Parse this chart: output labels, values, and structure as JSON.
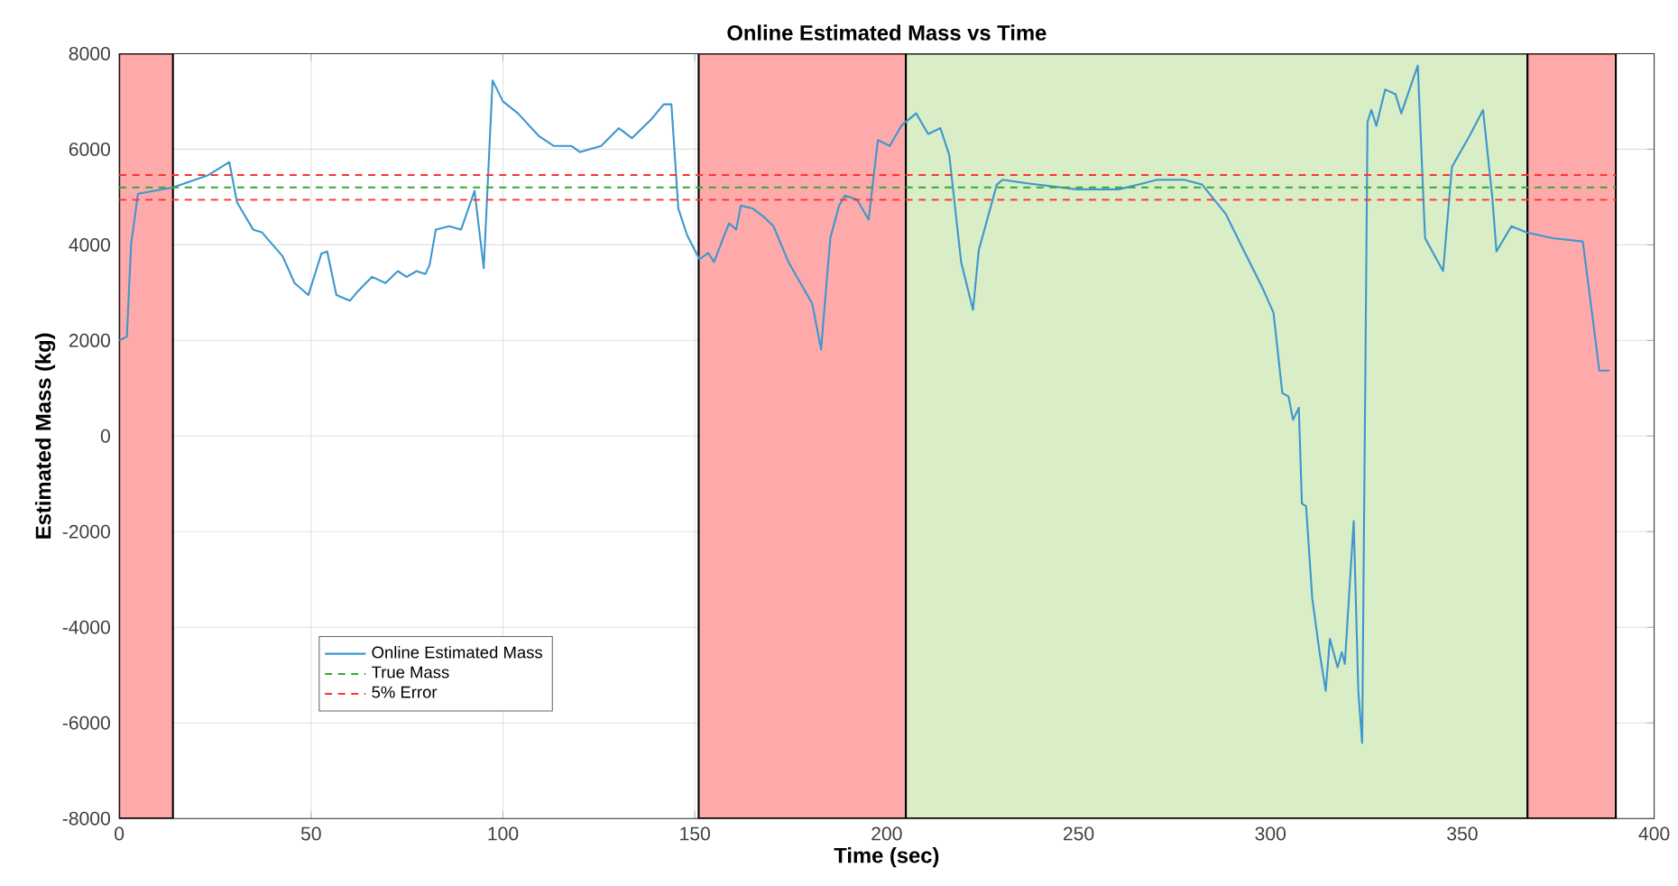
{
  "chart_data": {
    "type": "line",
    "title": "Online Estimated Mass vs Time",
    "xlabel": "Time (sec)",
    "ylabel": "Estimated Mass (kg)",
    "xlim": [
      0,
      400
    ],
    "ylim": [
      -8000,
      8000
    ],
    "xticks": [
      0,
      50,
      100,
      150,
      200,
      250,
      300,
      350,
      400
    ],
    "yticks": [
      -8000,
      -6000,
      -4000,
      -2000,
      0,
      2000,
      4000,
      6000,
      8000
    ],
    "grid": true,
    "legend": "bottom left",
    "marker": "none",
    "bands": [
      {
        "axis": "x",
        "from": 0,
        "to": 14,
        "color": "#ffaaaa"
      },
      {
        "axis": "x",
        "from": 151,
        "to": 205,
        "color": "#ffaaaa"
      },
      {
        "axis": "x",
        "from": 205,
        "to": 367,
        "color": "#d9edc6"
      },
      {
        "axis": "x",
        "from": 367,
        "to": 390,
        "color": "#ffaaaa"
      }
    ],
    "series": [
      {
        "name": "Online Estimated Mass",
        "color": "#3d97cf",
        "line_style": "solid",
        "x": [
          0,
          2,
          3.1,
          4.9,
          14,
          23,
          28.7,
          30.7,
          34.9,
          37.2,
          42.6,
          45.7,
          49.3,
          52.7,
          54.2,
          56.6,
          60.1,
          62,
          65.9,
          69.4,
          72.6,
          74.9,
          77.5,
          79.8,
          80.9,
          82.5,
          86,
          89.1,
          92.6,
          95,
          97.3,
          100,
          103.9,
          109.3,
          113.2,
          117.8,
          120.1,
          125.6,
          130.2,
          133.6,
          138.7,
          141.9,
          143.9,
          145.7,
          148,
          151.2,
          153.5,
          155,
          158.9,
          160.8,
          162,
          165.1,
          168.2,
          170.5,
          174.4,
          180.6,
          182.9,
          185.3,
          187.6,
          189.1,
          192.2,
          195.3,
          197.7,
          200.8,
          203.9,
          207.7,
          210.8,
          214,
          216.3,
          219.4,
          222.5,
          224,
          228.7,
          230.2,
          237.2,
          249.6,
          260.5,
          270.5,
          277.5,
          282.2,
          288.4,
          293.8,
          297.7,
          300.8,
          303.1,
          304.7,
          305.9,
          307.4,
          308.2,
          309.3,
          310.9,
          312.8,
          314.4,
          315.5,
          317.5,
          318.6,
          319.4,
          320.1,
          321.7,
          322.9,
          323.9,
          325.3,
          326.3,
          327.6,
          329.9,
          332.6,
          334.1,
          338.4,
          340.3,
          345,
          347.3,
          351.9,
          355.4,
          357.8,
          358.9,
          362.8,
          366.7,
          373.6,
          381.4,
          383.7,
          385.7,
          388.4
        ],
        "values": [
          2000,
          2080,
          4010,
          5070,
          5200,
          5450,
          5730,
          4890,
          4320,
          4260,
          3760,
          3200,
          2950,
          3820,
          3860,
          2950,
          2830,
          3010,
          3330,
          3200,
          3450,
          3330,
          3450,
          3390,
          3580,
          4320,
          4390,
          4320,
          5130,
          3510,
          7440,
          7000,
          6750,
          6280,
          6070,
          6070,
          5940,
          6070,
          6440,
          6230,
          6630,
          6940,
          6940,
          4760,
          4200,
          3700,
          3830,
          3640,
          4450,
          4320,
          4820,
          4760,
          4570,
          4390,
          3640,
          2770,
          1810,
          4140,
          4820,
          5030,
          4950,
          4530,
          6190,
          6070,
          6500,
          6750,
          6320,
          6440,
          5880,
          3640,
          2640,
          3890,
          5260,
          5360,
          5280,
          5160,
          5160,
          5360,
          5360,
          5260,
          4640,
          3760,
          3140,
          2580,
          900,
          830,
          340,
          590,
          -1410,
          -1470,
          -3400,
          -4520,
          -5330,
          -4240,
          -4840,
          -4520,
          -4770,
          -3840,
          -1780,
          -5330,
          -6420,
          6570,
          6820,
          6490,
          7250,
          7150,
          6750,
          7750,
          4140,
          3450,
          5630,
          6280,
          6820,
          5010,
          3860,
          4390,
          4260,
          4140,
          4070,
          2640,
          1370,
          1370
        ]
      },
      {
        "name": "True Mass",
        "color": "#33aa33",
        "line_style": "dashed",
        "x": [
          0,
          390
        ],
        "values": [
          5200,
          5200
        ]
      },
      {
        "name": "5% Error",
        "color": "#ff3333",
        "line_style": "dashed",
        "x": [
          0,
          390
        ],
        "values": [
          5460,
          5460
        ]
      },
      {
        "color": "#ff3333",
        "line_style": "dashed",
        "x": [
          0,
          390
        ],
        "values": [
          4940,
          4940
        ]
      }
    ]
  }
}
